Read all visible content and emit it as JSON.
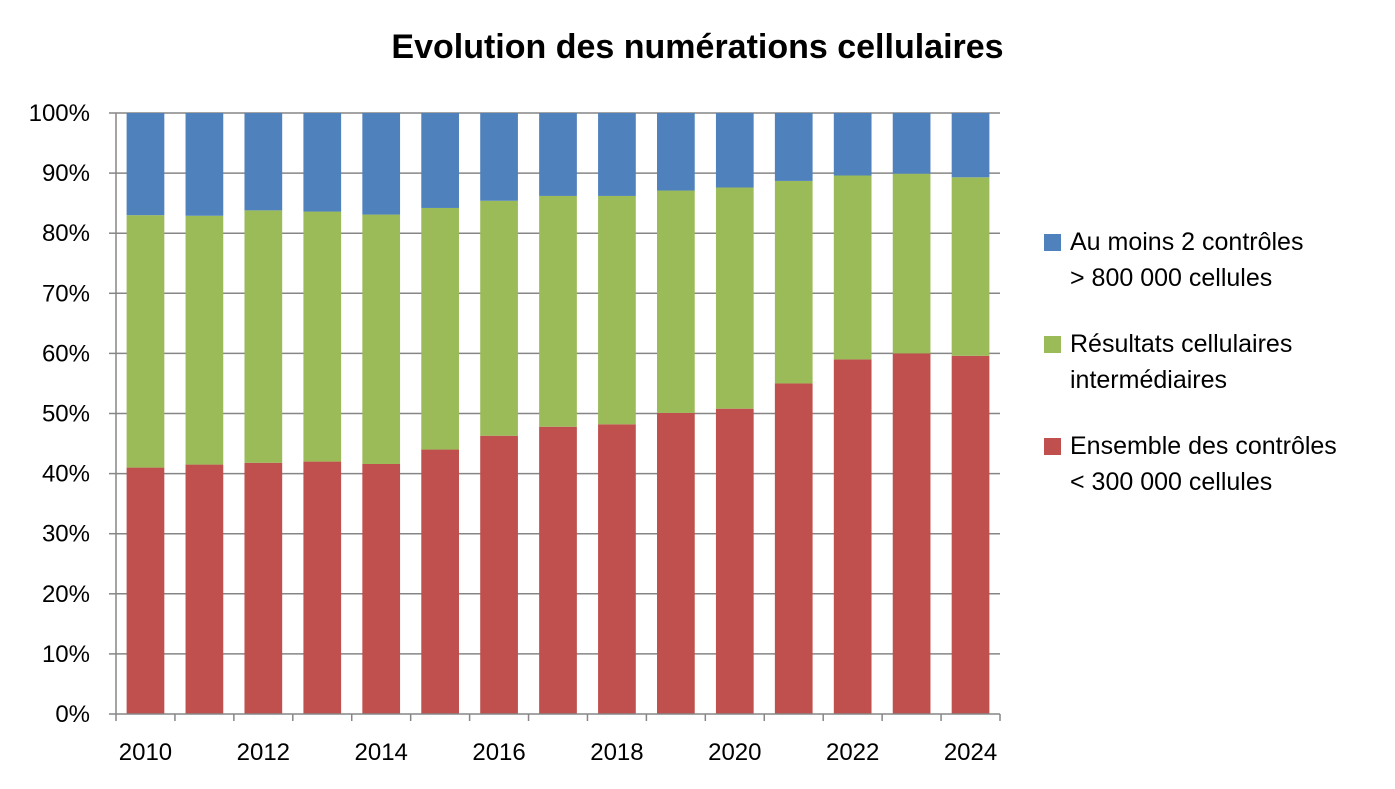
{
  "chart_data": {
    "type": "bar",
    "stacked": true,
    "percent_scale": true,
    "title": "Evolution des numérations cellulaires",
    "categories": [
      "2010",
      "2011",
      "2012",
      "2013",
      "2014",
      "2015",
      "2016",
      "2017",
      "2018",
      "2019",
      "2020",
      "2021",
      "2022",
      "2023",
      "2024"
    ],
    "x_tick_labels": [
      "2010",
      "",
      "2012",
      "",
      "2014",
      "",
      "2016",
      "",
      "2018",
      "",
      "2020",
      "",
      "2022",
      "",
      "2024"
    ],
    "y_tick_labels": [
      "0%",
      "10%",
      "20%",
      "30%",
      "40%",
      "50%",
      "60%",
      "70%",
      "80%",
      "90%",
      "100%"
    ],
    "ylim": [
      0,
      100
    ],
    "grid": true,
    "legend_position": "right",
    "series": [
      {
        "name": "Ensemble des contrôles < 300 000 cellules",
        "legend_lines": [
          "Ensemble des contrôles",
          "< 300 000 cellules"
        ],
        "color": "#C0504D",
        "values": [
          41.0,
          41.5,
          41.8,
          42.0,
          41.6,
          44.0,
          46.3,
          47.8,
          48.2,
          50.1,
          50.8,
          55.0,
          59.0,
          60.0,
          59.6
        ]
      },
      {
        "name": "Résultats cellulaires intermédiaires",
        "legend_lines": [
          "Résultats cellulaires",
          "intermédiaires"
        ],
        "color": "#9BBB59",
        "values": [
          42.0,
          41.4,
          42.0,
          41.6,
          41.5,
          40.2,
          39.1,
          38.4,
          38.0,
          37.0,
          36.8,
          33.7,
          30.6,
          29.9,
          29.7
        ]
      },
      {
        "name": "Au moins 2 contrôles > 800 000 cellules",
        "legend_lines": [
          "Au moins 2 contrôles",
          "> 800 000 cellules"
        ],
        "color": "#4F81BD",
        "values": [
          17.0,
          17.1,
          16.2,
          16.4,
          16.9,
          15.8,
          14.6,
          13.8,
          13.8,
          12.9,
          12.4,
          11.3,
          10.4,
          10.1,
          10.7
        ]
      }
    ]
  }
}
